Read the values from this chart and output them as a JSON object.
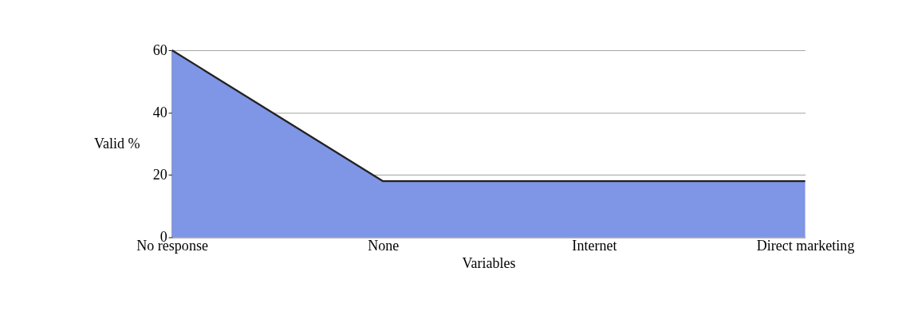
{
  "chart_data": {
    "type": "area",
    "xlabel": "Variables",
    "ylabel": "Valid %",
    "categories": [
      "No response",
      "None",
      "Internet",
      "Direct marketing"
    ],
    "series": [
      {
        "color": "#7f95e6",
        "values": [
          60,
          18,
          18,
          18
        ]
      }
    ],
    "ylim": [
      0,
      60
    ],
    "yticks": [
      0,
      20,
      40,
      60
    ],
    "grid": "y"
  }
}
